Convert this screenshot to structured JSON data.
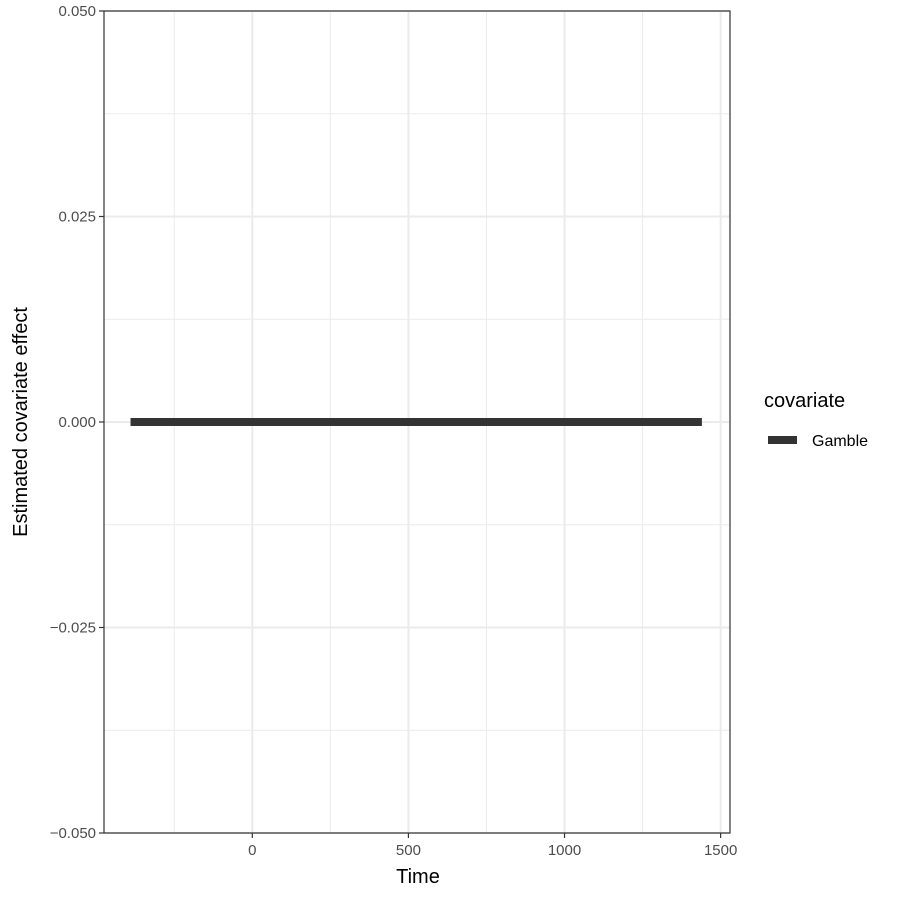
{
  "chart_data": {
    "type": "line",
    "xlabel": "Time",
    "ylabel": "Estimated covariate effect",
    "xlim": [
      -475,
      1530
    ],
    "ylim": [
      -0.05,
      0.05
    ],
    "x_ticks": [
      0,
      500,
      1000,
      1500
    ],
    "x_tick_labels": [
      "0",
      "500",
      "1000",
      "1500"
    ],
    "x_minor_ticks": [
      -250,
      250,
      750,
      1250
    ],
    "y_ticks": [
      -0.05,
      -0.025,
      0,
      0.025,
      0.05
    ],
    "y_tick_labels": [
      "−0.050",
      "−0.025",
      "0.000",
      "0.025",
      "0.050"
    ],
    "y_minor_ticks": [
      -0.0375,
      -0.0125,
      0.0125,
      0.0375
    ],
    "grid": true,
    "legend": {
      "title": "covariate",
      "position": "right"
    },
    "series": [
      {
        "name": "Gamble",
        "color": "#333333",
        "x": [
          -390,
          1440
        ],
        "y": [
          0,
          0
        ]
      }
    ]
  }
}
